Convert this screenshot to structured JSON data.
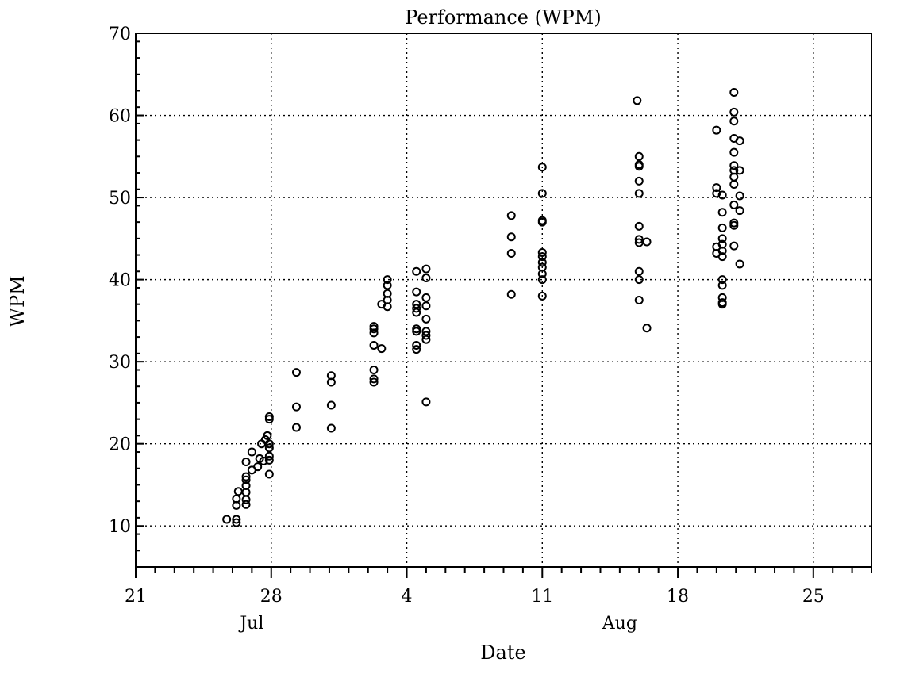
{
  "chart_data": {
    "type": "scatter",
    "title": "Performance (WPM)",
    "xlabel": "Date",
    "ylabel": "WPM",
    "x_ticks": [
      {
        "date": "07-21",
        "label": "21"
      },
      {
        "date": "07-28",
        "label": "28"
      },
      {
        "date": "08-04",
        "label": "4"
      },
      {
        "date": "08-11",
        "label": "11"
      },
      {
        "date": "08-18",
        "label": "18"
      },
      {
        "date": "08-25",
        "label": "25"
      }
    ],
    "month_labels": [
      {
        "date": "07-27",
        "label": "Jul"
      },
      {
        "date": "08-15",
        "label": "Aug"
      }
    ],
    "xlim": [
      "07-21",
      "08-28"
    ],
    "y_ticks": [
      10,
      20,
      30,
      40,
      50,
      60,
      70
    ],
    "ylim": [
      5,
      70
    ],
    "grid": true,
    "points": [
      [
        "07-25.7",
        10.8
      ],
      [
        "07-26.2",
        13.3
      ],
      [
        "07-26.2",
        12.5
      ],
      [
        "07-26.2",
        10.4
      ],
      [
        "07-26.2",
        10.8
      ],
      [
        "07-26.3",
        14.2
      ],
      [
        "07-26.7",
        12.6
      ],
      [
        "07-26.7",
        13.2
      ],
      [
        "07-26.7",
        14.1
      ],
      [
        "07-26.7",
        14.9
      ],
      [
        "07-26.7",
        15.6
      ],
      [
        "07-26.7",
        16.0
      ],
      [
        "07-26.7",
        17.8
      ],
      [
        "07-27.0",
        19.0
      ],
      [
        "07-27.0",
        16.8
      ],
      [
        "07-27.3",
        17.2
      ],
      [
        "07-27.4",
        18.2
      ],
      [
        "07-27.5",
        20.0
      ],
      [
        "07-27.6",
        17.9
      ],
      [
        "07-27.7",
        20.5
      ],
      [
        "07-27.8",
        21.0
      ],
      [
        "07-27.9",
        16.3
      ],
      [
        "07-27.9",
        18.0
      ],
      [
        "07-27.9",
        18.5
      ],
      [
        "07-27.9",
        19.5
      ],
      [
        "07-27.9",
        20.0
      ],
      [
        "07-27.9",
        23.0
      ],
      [
        "07-27.9",
        23.3
      ],
      [
        "07-29.3",
        28.7
      ],
      [
        "07-29.3",
        24.5
      ],
      [
        "07-29.3",
        22.0
      ],
      [
        "07-31.1",
        28.3
      ],
      [
        "07-31.1",
        27.5
      ],
      [
        "07-31.1",
        24.7
      ],
      [
        "07-31.1",
        21.9
      ],
      [
        "08-02.3",
        34.0
      ],
      [
        "08-02.3",
        33.5
      ],
      [
        "08-02.3",
        32.0
      ],
      [
        "08-02.3",
        29.0
      ],
      [
        "08-02.3",
        27.5
      ],
      [
        "08-02.3",
        27.9
      ],
      [
        "08-02.3",
        34.3
      ],
      [
        "08-02.7",
        31.6
      ],
      [
        "08-02.7",
        37.0
      ],
      [
        "08-03.0",
        40.0
      ],
      [
        "08-03.0",
        39.3
      ],
      [
        "08-03.0",
        38.3
      ],
      [
        "08-03.0",
        37.5
      ],
      [
        "08-03.0",
        36.7
      ],
      [
        "08-04.5",
        41.0
      ],
      [
        "08-04.5",
        38.5
      ],
      [
        "08-04.5",
        37.0
      ],
      [
        "08-04.5",
        36.5
      ],
      [
        "08-04.5",
        36.0
      ],
      [
        "08-04.5",
        34.0
      ],
      [
        "08-04.5",
        33.7
      ],
      [
        "08-04.5",
        32.0
      ],
      [
        "08-04.5",
        31.5
      ],
      [
        "08-05.0",
        41.3
      ],
      [
        "08-05.0",
        40.2
      ],
      [
        "08-05.0",
        37.8
      ],
      [
        "08-05.0",
        36.8
      ],
      [
        "08-05.0",
        35.2
      ],
      [
        "08-05.0",
        33.7
      ],
      [
        "08-05.0",
        33.2
      ],
      [
        "08-05.0",
        32.7
      ],
      [
        "08-05.0",
        25.1
      ],
      [
        "08-09.4",
        47.8
      ],
      [
        "08-09.4",
        45.2
      ],
      [
        "08-09.4",
        43.2
      ],
      [
        "08-09.4",
        38.2
      ],
      [
        "08-11.0",
        53.7
      ],
      [
        "08-11.0",
        50.5
      ],
      [
        "08-11.0",
        47.2
      ],
      [
        "08-11.0",
        47.0
      ],
      [
        "08-11.0",
        43.3
      ],
      [
        "08-11.0",
        42.8
      ],
      [
        "08-11.0",
        42.1
      ],
      [
        "08-11.0",
        41.5
      ],
      [
        "08-11.0",
        40.7
      ],
      [
        "08-11.0",
        40.0
      ],
      [
        "08-11.0",
        38.0
      ],
      [
        "08-15.9",
        61.8
      ],
      [
        "08-16.0",
        55.0
      ],
      [
        "08-16.0",
        54.0
      ],
      [
        "08-16.0",
        53.8
      ],
      [
        "08-16.0",
        52.0
      ],
      [
        "08-16.0",
        50.5
      ],
      [
        "08-16.0",
        46.5
      ],
      [
        "08-16.0",
        44.9
      ],
      [
        "08-16.0",
        44.5
      ],
      [
        "08-16.0",
        41.0
      ],
      [
        "08-16.0",
        40.0
      ],
      [
        "08-16.0",
        37.5
      ],
      [
        "08-16.4",
        44.6
      ],
      [
        "08-16.4",
        34.1
      ],
      [
        "08-20.0",
        58.2
      ],
      [
        "08-20.0",
        51.2
      ],
      [
        "08-20.0",
        50.5
      ],
      [
        "08-20.0",
        44.0
      ],
      [
        "08-20.0",
        43.2
      ],
      [
        "08-20.3",
        50.3
      ],
      [
        "08-20.3",
        48.2
      ],
      [
        "08-20.3",
        46.3
      ],
      [
        "08-20.3",
        45.0
      ],
      [
        "08-20.3",
        44.3
      ],
      [
        "08-20.3",
        43.5
      ],
      [
        "08-20.3",
        42.8
      ],
      [
        "08-20.3",
        40.0
      ],
      [
        "08-20.3",
        39.3
      ],
      [
        "08-20.3",
        37.8
      ],
      [
        "08-20.3",
        37.2
      ],
      [
        "08-20.3",
        37.0
      ],
      [
        "08-20.9",
        62.8
      ],
      [
        "08-20.9",
        60.4
      ],
      [
        "08-20.9",
        59.3
      ],
      [
        "08-20.9",
        57.2
      ],
      [
        "08-20.9",
        55.5
      ],
      [
        "08-20.9",
        53.9
      ],
      [
        "08-20.9",
        53.3
      ],
      [
        "08-20.9",
        52.5
      ],
      [
        "08-20.9",
        51.6
      ],
      [
        "08-20.9",
        49.1
      ],
      [
        "08-20.9",
        46.9
      ],
      [
        "08-20.9",
        46.6
      ],
      [
        "08-20.9",
        44.1
      ],
      [
        "08-21.2",
        56.9
      ],
      [
        "08-21.2",
        53.3
      ],
      [
        "08-21.2",
        50.2
      ],
      [
        "08-21.2",
        48.4
      ],
      [
        "08-21.2",
        41.9
      ]
    ]
  }
}
